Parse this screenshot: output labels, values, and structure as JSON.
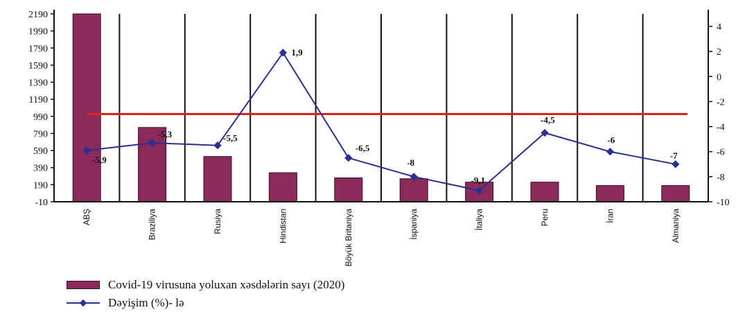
{
  "chart_data": {
    "type": "bar",
    "categories": [
      "ABŞ",
      "Braziliya",
      "Rusiya",
      "Hindistan",
      "Böyük Britaniya",
      "İspaniya",
      "İtaliya",
      "Peru",
      "İran",
      "Almaniya"
    ],
    "series": [
      {
        "name": "Covid-19 virusuna yoluxan xəsdələrin sayı (2020)",
        "type": "bar",
        "axis": "left",
        "values": [
          2190,
          860,
          520,
          330,
          270,
          260,
          220,
          220,
          180,
          180
        ]
      },
      {
        "name": "Dəyişim (%)- lə",
        "type": "line",
        "axis": "right",
        "values": [
          -5.9,
          -5.3,
          -5.5,
          1.9,
          -6.5,
          -8,
          -9.1,
          -4.5,
          -6,
          -7
        ],
        "labels": [
          "-5,9",
          "-5,3",
          "-5,5",
          "1,9",
          "-6,5",
          "-8",
          "-9,1",
          "-4,5",
          "-6",
          "-7"
        ]
      }
    ],
    "reference_line": {
      "axis": "right",
      "value": -3,
      "color": "#e0211d"
    },
    "left_axis": {
      "ylim": [
        -10,
        2190
      ],
      "ticks": [
        "2190",
        "1990",
        "1790",
        "1590",
        "1390",
        "1190",
        "990",
        "790",
        "590",
        "390",
        "190",
        "-10"
      ]
    },
    "right_axis": {
      "ylim": [
        -10,
        5
      ],
      "ticks": [
        "4",
        "2",
        "0",
        "-2",
        "-4",
        "-6",
        "-8",
        "-10"
      ]
    },
    "grid": "vertical lines between categories",
    "legend_position": "bottom-left",
    "colors": {
      "bar": "#8b2a5c",
      "line": "#2b2f8f",
      "reference": "#e0211d"
    }
  },
  "legend": {
    "bar_label": "Covid-19 virusuna yoluxan xəsdələrin sayı (2020)",
    "line_label": "Dəyişim (%)- lə"
  }
}
